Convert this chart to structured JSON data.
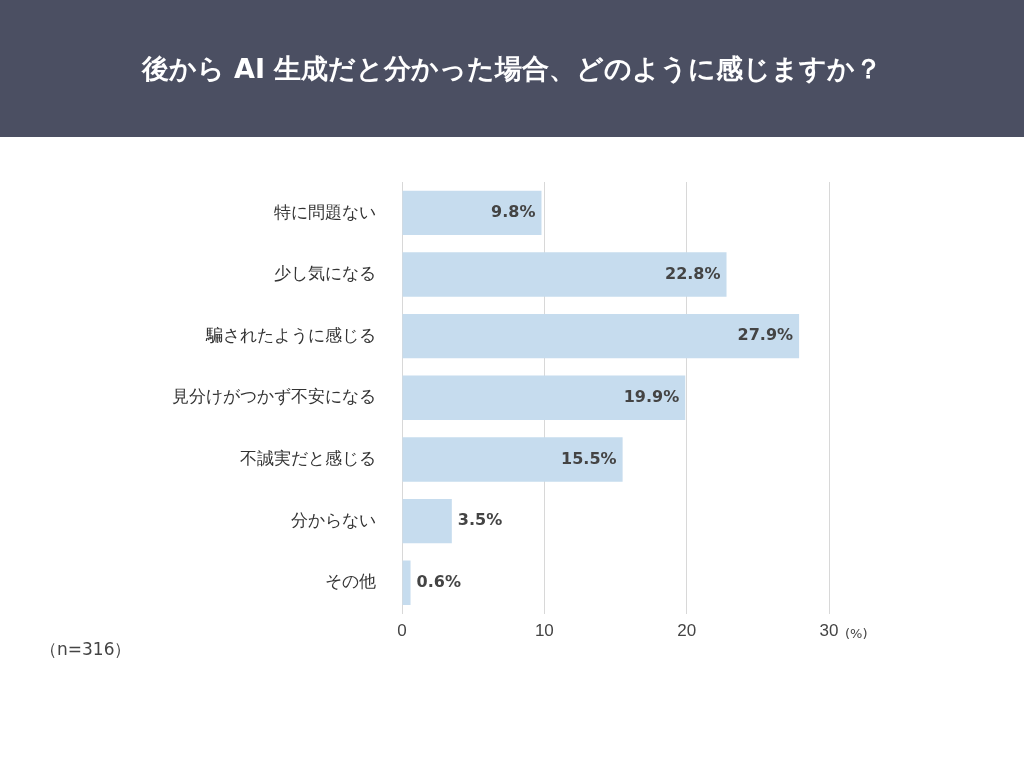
{
  "chart_data": {
    "type": "bar",
    "orientation": "horizontal",
    "title": "後から AI 生成だと分かった場合、どのように感じますか？",
    "categories": [
      "特に問題ない",
      "少し気になる",
      "騙されたように感じる",
      "見分けがつかず不安になる",
      "不誠実だと感じる",
      "分からない",
      "その他"
    ],
    "values": [
      9.8,
      22.8,
      27.9,
      19.9,
      15.5,
      3.5,
      0.6
    ],
    "value_labels": [
      "9.8%",
      "22.8%",
      "27.9%",
      "19.9%",
      "15.5%",
      "3.5%",
      "0.6%"
    ],
    "color": "#c6dcee",
    "xlim": [
      0,
      30
    ],
    "xticks": [
      0,
      10,
      20,
      30
    ],
    "xlabel": "(%)",
    "grid": "x",
    "legend": false,
    "annotations": [
      "（n=316）"
    ]
  }
}
